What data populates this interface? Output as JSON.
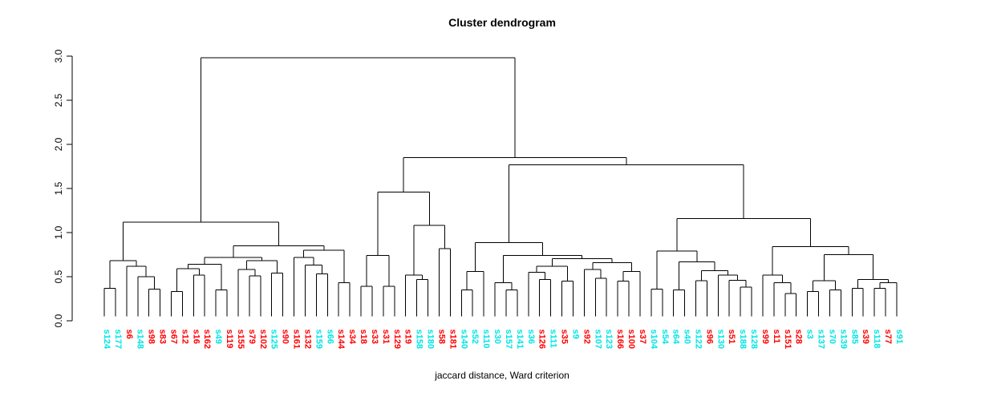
{
  "title": "Cluster dendrogram",
  "caption": "jaccard distance, Ward criterion",
  "chart_data": {
    "type": "dendrogram",
    "title": "Cluster dendrogram",
    "xlabel": "jaccard distance, Ward criterion",
    "grid": false,
    "line_color": "#000000",
    "label_colors": {
      "cyan": "#00e5e5",
      "red": "#ff0000"
    },
    "yaxis": {
      "range": [
        0.0,
        3.0
      ],
      "ticks": [
        0.0,
        0.5,
        1.0,
        1.5,
        2.0,
        2.5,
        3.0
      ],
      "tick_labels": [
        "0.0",
        "0.5",
        "1.0",
        "1.5",
        "2.0",
        "2.5",
        "3.0"
      ]
    },
    "leaves": [
      {
        "label": "s124",
        "color": "cyan"
      },
      {
        "label": "s177",
        "color": "cyan"
      },
      {
        "label": "s6",
        "color": "red"
      },
      {
        "label": "s148",
        "color": "cyan"
      },
      {
        "label": "s98",
        "color": "red"
      },
      {
        "label": "s83",
        "color": "red"
      },
      {
        "label": "s67",
        "color": "red"
      },
      {
        "label": "s12",
        "color": "red"
      },
      {
        "label": "s16",
        "color": "red"
      },
      {
        "label": "s162",
        "color": "red"
      },
      {
        "label": "s49",
        "color": "cyan"
      },
      {
        "label": "s119",
        "color": "red"
      },
      {
        "label": "s155",
        "color": "red"
      },
      {
        "label": "s79",
        "color": "red"
      },
      {
        "label": "s102",
        "color": "red"
      },
      {
        "label": "s125",
        "color": "cyan"
      },
      {
        "label": "s90",
        "color": "red"
      },
      {
        "label": "s161",
        "color": "red"
      },
      {
        "label": "s132",
        "color": "red"
      },
      {
        "label": "s159",
        "color": "cyan"
      },
      {
        "label": "s66",
        "color": "cyan"
      },
      {
        "label": "s144",
        "color": "red"
      },
      {
        "label": "s34",
        "color": "red"
      },
      {
        "label": "s18",
        "color": "red"
      },
      {
        "label": "s33",
        "color": "red"
      },
      {
        "label": "s31",
        "color": "red"
      },
      {
        "label": "s129",
        "color": "red"
      },
      {
        "label": "s19",
        "color": "red"
      },
      {
        "label": "s158",
        "color": "cyan"
      },
      {
        "label": "s180",
        "color": "cyan"
      },
      {
        "label": "s58",
        "color": "red"
      },
      {
        "label": "s181",
        "color": "red"
      },
      {
        "label": "s140",
        "color": "cyan"
      },
      {
        "label": "s52",
        "color": "cyan"
      },
      {
        "label": "s110",
        "color": "cyan"
      },
      {
        "label": "s30",
        "color": "cyan"
      },
      {
        "label": "s157",
        "color": "cyan"
      },
      {
        "label": "s141",
        "color": "cyan"
      },
      {
        "label": "s36",
        "color": "cyan"
      },
      {
        "label": "s126",
        "color": "red"
      },
      {
        "label": "s111",
        "color": "cyan"
      },
      {
        "label": "s35",
        "color": "red"
      },
      {
        "label": "s9",
        "color": "cyan"
      },
      {
        "label": "s92",
        "color": "red"
      },
      {
        "label": "s107",
        "color": "cyan"
      },
      {
        "label": "s123",
        "color": "cyan"
      },
      {
        "label": "s166",
        "color": "red"
      },
      {
        "label": "s100",
        "color": "red"
      },
      {
        "label": "s37",
        "color": "red"
      },
      {
        "label": "s104",
        "color": "cyan"
      },
      {
        "label": "s54",
        "color": "cyan"
      },
      {
        "label": "s64",
        "color": "cyan"
      },
      {
        "label": "s40",
        "color": "cyan"
      },
      {
        "label": "s122",
        "color": "cyan"
      },
      {
        "label": "s96",
        "color": "red"
      },
      {
        "label": "s130",
        "color": "cyan"
      },
      {
        "label": "s51",
        "color": "red"
      },
      {
        "label": "s188",
        "color": "cyan"
      },
      {
        "label": "s128",
        "color": "cyan"
      },
      {
        "label": "s99",
        "color": "red"
      },
      {
        "label": "s11",
        "color": "red"
      },
      {
        "label": "s151",
        "color": "red"
      },
      {
        "label": "s28",
        "color": "red"
      },
      {
        "label": "s3",
        "color": "cyan"
      },
      {
        "label": "s137",
        "color": "cyan"
      },
      {
        "label": "s70",
        "color": "cyan"
      },
      {
        "label": "s139",
        "color": "cyan"
      },
      {
        "label": "s85",
        "color": "cyan"
      },
      {
        "label": "s39",
        "color": "red"
      },
      {
        "label": "s118",
        "color": "cyan"
      },
      {
        "label": "s77",
        "color": "red"
      },
      {
        "label": "s91",
        "color": "cyan"
      }
    ],
    "leaf_hang_height": 0.05,
    "merges": [
      2.98,
      [
        1.12,
        [
          0.68,
          [
            0.37,
            0,
            1
          ],
          [
            0.62,
            2,
            [
              0.5,
              3,
              [
                0.36,
                4,
                5
              ]
            ]
          ]
        ],
        [
          0.85,
          [
            0.72,
            [
              0.64,
              [
                0.59,
                [
                  0.33,
                  6,
                  7
                ],
                [
                  0.52,
                  8,
                  9
                ]
              ],
              [
                0.35,
                10,
                11
              ]
            ],
            [
              0.68,
              [
                0.58,
                12,
                [
                  0.51,
                  13,
                  14
                ]
              ],
              [
                0.54,
                15,
                16
              ]
            ]
          ],
          [
            0.8,
            [
              0.72,
              17,
              [
                0.63,
                18,
                [
                  0.53,
                  19,
                  20
                ]
              ]
            ],
            [
              0.43,
              21,
              22
            ]
          ]
        ]
      ],
      [
        1.85,
        [
          1.46,
          [
            0.74,
            [
              0.39,
              23,
              24
            ],
            [
              0.39,
              25,
              26
            ]
          ],
          [
            1.08,
            [
              0.52,
              27,
              [
                0.47,
                28,
                29
              ]
            ],
            [
              0.82,
              30,
              31
            ]
          ]
        ],
        [
          1.77,
          [
            0.885,
            [
              0.56,
              [
                0.35,
                32,
                33
              ],
              34
            ],
            [
              0.74,
              [
                0.43,
                35,
                [
                  0.35,
                  36,
                  37
                ]
              ],
              [
                0.705,
                [
                  0.62,
                  [
                    0.55,
                    38,
                    [
                      0.47,
                      39,
                      40
                    ]
                  ],
                  [
                    0.45,
                    41,
                    42
                  ]
                ],
                [
                  0.66,
                  [
                    0.58,
                    43,
                    [
                      0.48,
                      44,
                      45
                    ]
                  ],
                  [
                    0.56,
                    [
                      0.45,
                      46,
                      47
                    ],
                    48
                  ]
                ]
              ]
            ]
          ],
          [
            1.16,
            [
              0.79,
              [
                0.36,
                49,
                50
              ],
              [
                0.67,
                [
                  0.35,
                  51,
                  52
                ],
                [
                  0.57,
                  [
                    0.455,
                    53,
                    54
                  ],
                  [
                    0.52,
                    55,
                    [
                      0.46,
                      56,
                      [
                        0.38,
                        57,
                        58
                      ]
                    ]
                  ]
                ]
              ]
            ],
            [
              0.84,
              [
                0.52,
                59,
                [
                  0.43,
                  60,
                  [
                    0.31,
                    61,
                    62
                  ]
                ]
              ],
              [
                0.75,
                [
                  0.455,
                  [
                    0.33,
                    63,
                    64
                  ],
                  [
                    0.35,
                    65,
                    66
                  ]
                ],
                [
                  0.47,
                  [
                    0.37,
                    67,
                    68
                  ],
                  [
                    0.43,
                    [
                      0.37,
                      69,
                      70
                    ],
                    71
                  ]
                ]
              ]
            ]
          ]
        ]
      ]
    ]
  }
}
